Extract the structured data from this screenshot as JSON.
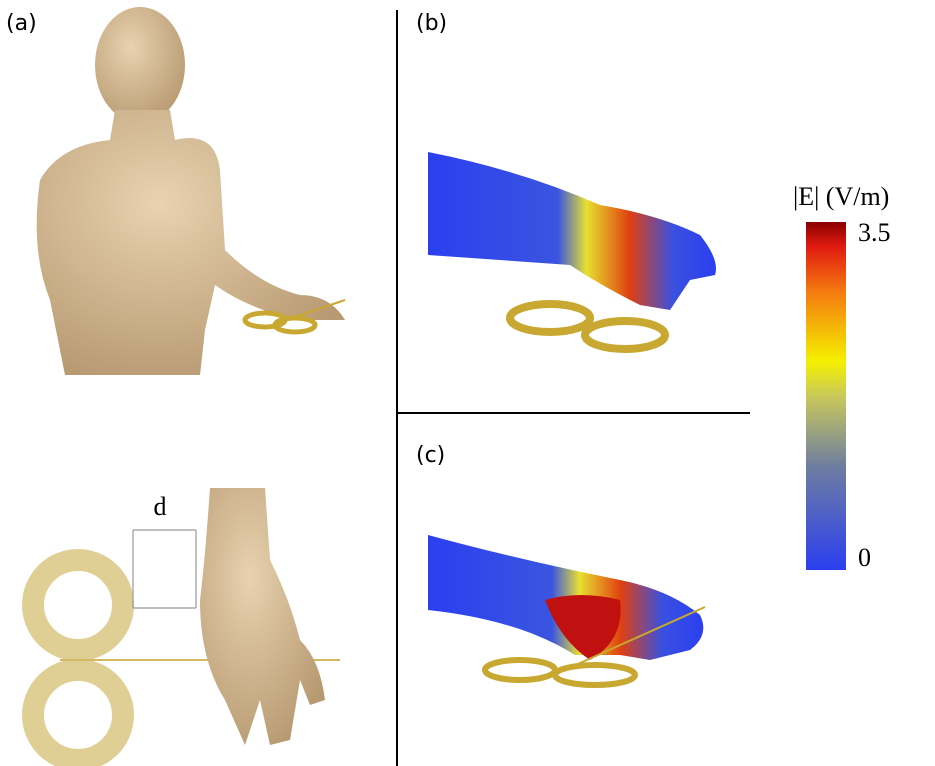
{
  "panels": {
    "a": "(a)",
    "b": "(b)",
    "c": "(c)"
  },
  "dimension_label": "d",
  "colorbar": {
    "label": "|E| (V/m)",
    "lim": [
      0,
      3.5
    ],
    "ticks": [
      0,
      3.5
    ]
  }
}
